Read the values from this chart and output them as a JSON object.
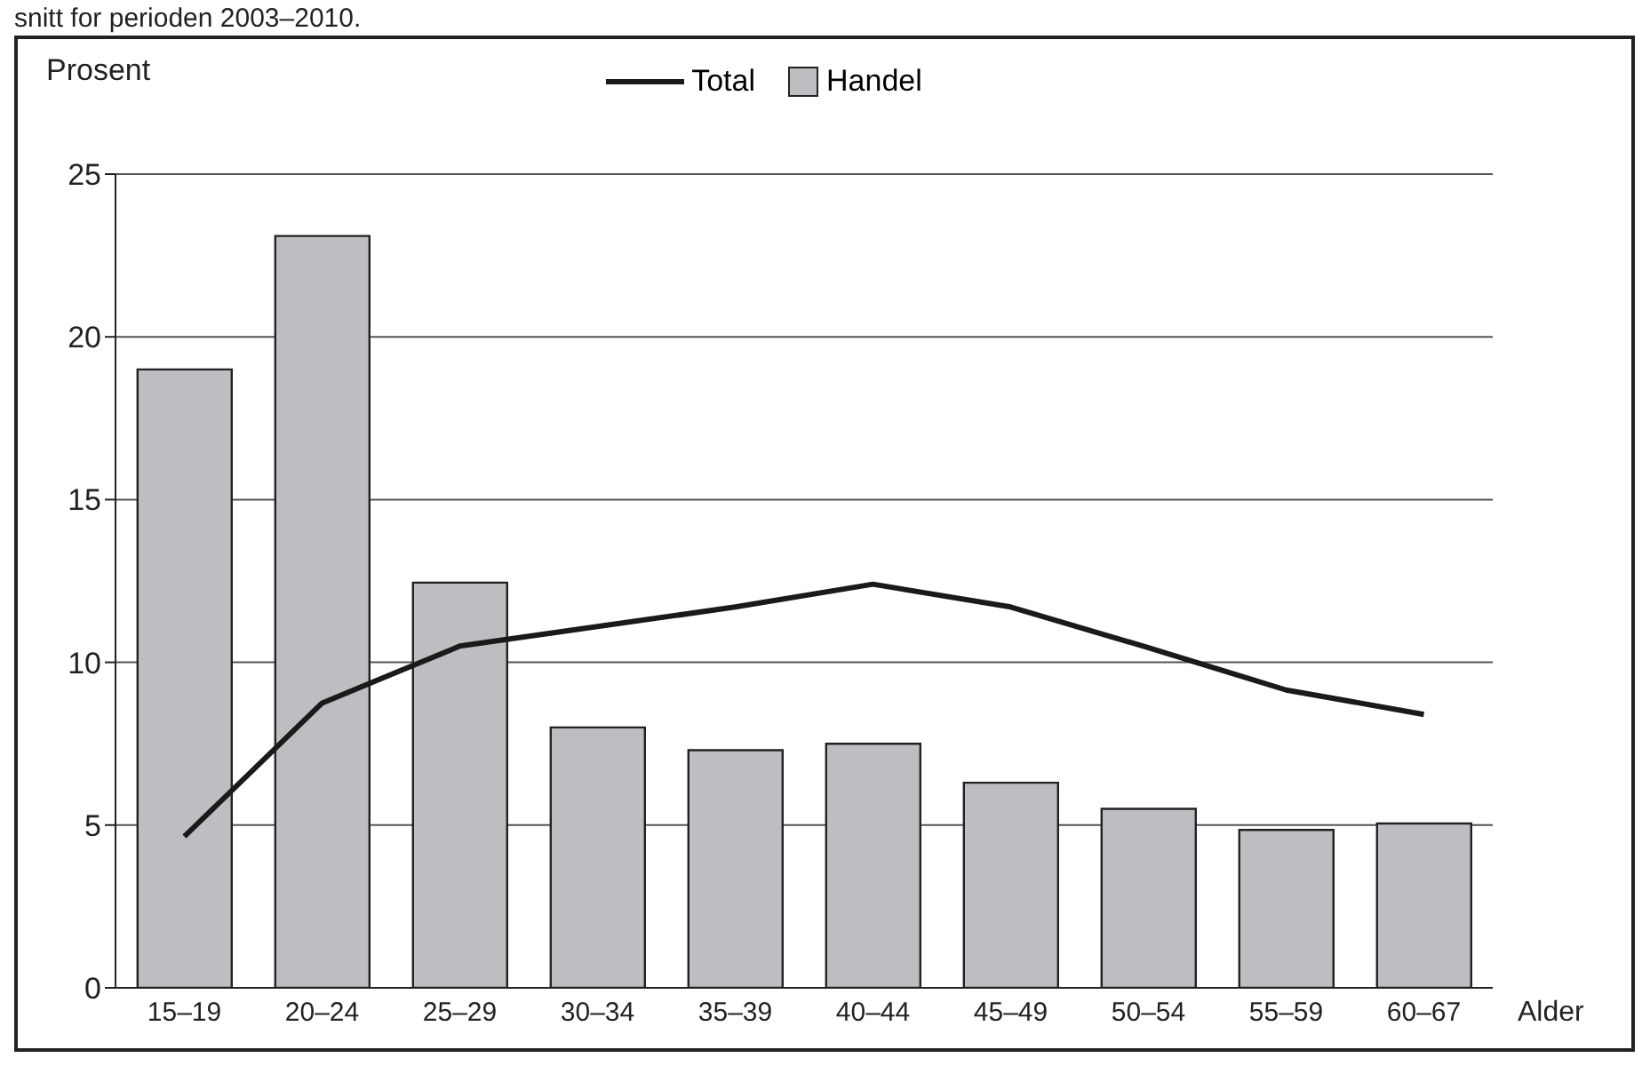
{
  "chart_data": {
    "type": "bar",
    "annotations": [
      "snitt for perioden 2003–2010."
    ],
    "ylabel": "Prosent",
    "xlabel": "Alder",
    "categories": [
      "15–19",
      "20–24",
      "25–29",
      "30–34",
      "35–39",
      "40–44",
      "45–49",
      "50–54",
      "55–59",
      "60–67"
    ],
    "series": [
      {
        "name": "Total",
        "type": "line",
        "color": "#1a1a1a",
        "values": [
          4.65,
          8.75,
          10.5,
          11.1,
          11.7,
          12.4,
          11.7,
          10.45,
          9.15,
          8.4
        ]
      },
      {
        "name": "Handel",
        "type": "bar",
        "color": "#bdbec2",
        "values": [
          19.0,
          23.1,
          12.45,
          8.0,
          7.3,
          7.5,
          6.3,
          5.5,
          4.85,
          5.05
        ]
      }
    ],
    "ylim": [
      0,
      25
    ],
    "yticks": [
      0,
      5,
      10,
      15,
      20,
      25
    ],
    "grid": "y",
    "legend": "top"
  }
}
